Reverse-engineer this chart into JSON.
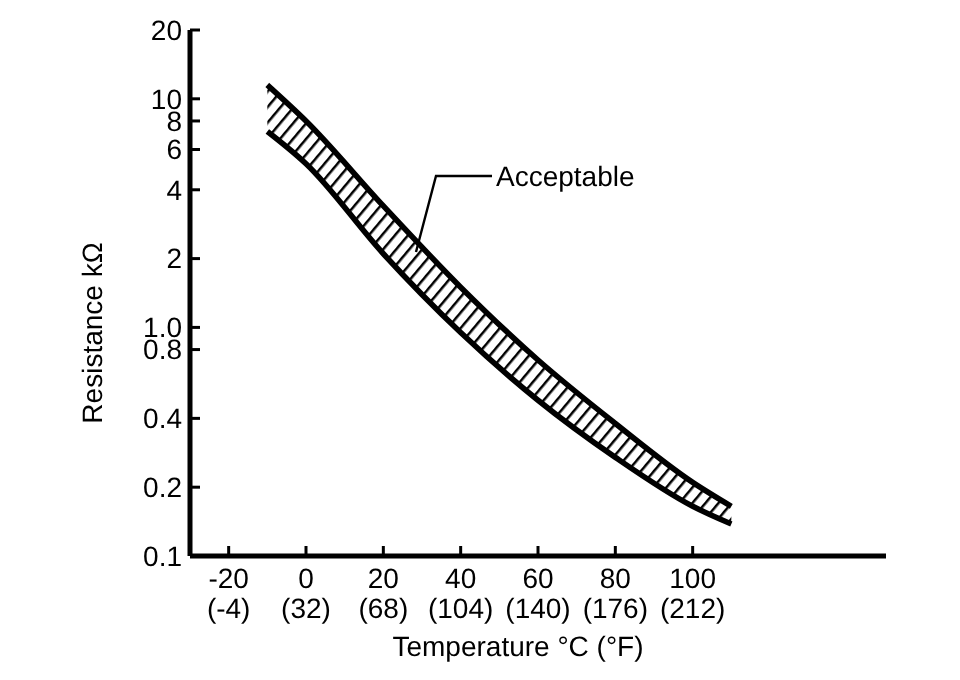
{
  "chart_data": {
    "type": "line",
    "xlabel": "Temperature °C (°F)",
    "ylabel": "Resistance  kΩ",
    "log": "y",
    "grid": false,
    "xlim": [
      -30,
      150
    ],
    "ylim": [
      0.1,
      20
    ],
    "xticks": [
      -20,
      0,
      20,
      40,
      60,
      80,
      100
    ],
    "x2lim": [
      -22,
      302
    ],
    "x2ticks": [
      {
        "value": -4,
        "label": "(-4)"
      },
      {
        "value": 32,
        "label": "(32)"
      },
      {
        "value": 68,
        "label": "(68)"
      },
      {
        "value": 104,
        "label": "(104)"
      },
      {
        "value": 140,
        "label": "(140)"
      },
      {
        "value": 176,
        "label": "(176)"
      },
      {
        "value": 212,
        "label": "(212)"
      }
    ],
    "yticks": [
      0.1,
      0.2,
      0.4,
      0.8,
      {
        "value": 1,
        "label": "1.0"
      },
      2,
      4,
      6,
      8,
      10,
      20
    ],
    "series": [
      {
        "color": "#000000",
        "x": [
          -10,
          0,
          20,
          40,
          60,
          80,
          100,
          110
        ],
        "values": [
          11.5,
          8.0,
          3.4,
          1.5,
          0.72,
          0.38,
          0.21,
          0.165
        ]
      },
      {
        "color": "#000000",
        "x": [
          -10,
          0,
          20,
          40,
          60,
          80,
          100,
          110
        ],
        "values": [
          7.2,
          5.2,
          2.1,
          0.95,
          0.48,
          0.27,
          0.165,
          0.138
        ]
      }
    ],
    "annotations": [
      "Acceptable"
    ]
  }
}
